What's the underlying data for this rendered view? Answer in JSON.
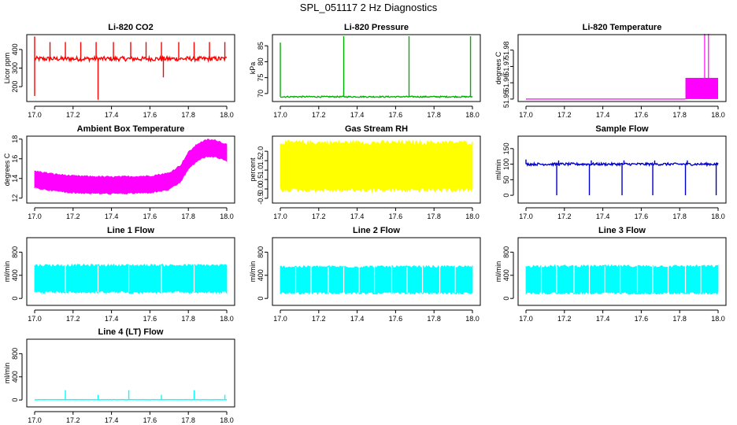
{
  "figure_title": "SPL_051117  2 Hz Diagnostics",
  "chart_data": [
    {
      "id": "li820-co2",
      "type": "line",
      "title": "Li-820 CO2",
      "ylabel": "Licor ppm",
      "color": "#ff0000",
      "xlim": [
        17.0,
        18.0
      ],
      "xticks": [
        "17.0",
        "17.2",
        "17.4",
        "17.6",
        "17.8",
        "18.0"
      ],
      "ylim": [
        120,
        480
      ],
      "yticks": [
        {
          "v": 200,
          "label": "200"
        },
        {
          "v": 300,
          "label": "300"
        },
        {
          "v": 400,
          "label": "400"
        }
      ],
      "baseline": 350,
      "noise": 12,
      "spikes": [
        [
          17.0,
          150
        ],
        [
          17.0,
          470
        ],
        [
          17.08,
          440
        ],
        [
          17.16,
          440
        ],
        [
          17.24,
          440
        ],
        [
          17.32,
          440
        ],
        [
          17.33,
          130
        ],
        [
          17.41,
          440
        ],
        [
          17.5,
          440
        ],
        [
          17.58,
          440
        ],
        [
          17.66,
          440
        ],
        [
          17.67,
          250
        ],
        [
          17.75,
          440
        ],
        [
          17.83,
          440
        ],
        [
          17.91,
          440
        ],
        [
          17.99,
          440
        ]
      ]
    },
    {
      "id": "li820-pressure",
      "type": "line",
      "title": "Li-820 Pressure",
      "ylabel": "kPa",
      "color": "#00b000",
      "xlim": [
        17.0,
        18.0
      ],
      "xticks": [
        "17.0",
        "17.2",
        "17.4",
        "17.6",
        "17.8",
        "18.0"
      ],
      "ylim": [
        67.5,
        88.5
      ],
      "yticks": [
        {
          "v": 70,
          "label": "70"
        },
        {
          "v": 75,
          "label": "75"
        },
        {
          "v": 80,
          "label": "80"
        },
        {
          "v": 85,
          "label": "85"
        }
      ],
      "baseline": 69.0,
      "noise": 0.2,
      "spikes": [
        [
          17.0,
          86
        ],
        [
          17.33,
          88
        ],
        [
          17.67,
          88
        ],
        [
          17.99,
          88
        ]
      ]
    },
    {
      "id": "li820-temperature",
      "type": "step",
      "title": "Li-820 Temperature",
      "ylabel": "degrees C",
      "color": "#ff00ff",
      "xlim": [
        17.0,
        18.0
      ],
      "xticks": [
        "17.0",
        "17.2",
        "17.4",
        "17.6",
        "17.8",
        "18.0"
      ],
      "ylim": [
        51.9485,
        51.9895
      ],
      "yticks": [
        {
          "v": 51.95,
          "label": "51.95"
        },
        {
          "v": 51.96,
          "label": "51.96"
        },
        {
          "v": 51.97,
          "label": "51.97"
        },
        {
          "v": 51.98,
          "label": "51.98"
        }
      ],
      "levels": [
        51.95,
        51.963
      ],
      "switch_x": 17.83,
      "block_start": 17.83,
      "block_end": 18.0,
      "spikes": [
        [
          17.93,
          51.99
        ],
        [
          17.95,
          51.99
        ]
      ]
    },
    {
      "id": "ambient-box-temperature",
      "type": "band",
      "title": "Ambient Box Temperature",
      "ylabel": "degrees C",
      "color": "#ff00ff",
      "xlim": [
        17.0,
        18.0
      ],
      "xticks": [
        "17.0",
        "17.2",
        "17.4",
        "17.6",
        "17.8",
        "18.0"
      ],
      "ylim": [
        11.5,
        18.3
      ],
      "yticks": [
        {
          "v": 12,
          "label": "12"
        },
        {
          "v": 14,
          "label": "14"
        },
        {
          "v": 16,
          "label": "16"
        },
        {
          "v": 18,
          "label": "18"
        }
      ],
      "center": [
        [
          17.0,
          13.9
        ],
        [
          17.1,
          13.6
        ],
        [
          17.2,
          13.4
        ],
        [
          17.4,
          13.3
        ],
        [
          17.6,
          13.4
        ],
        [
          17.7,
          13.7
        ],
        [
          17.76,
          14.5
        ],
        [
          17.8,
          15.8
        ],
        [
          17.85,
          16.7
        ],
        [
          17.9,
          17.1
        ],
        [
          17.95,
          17.0
        ],
        [
          18.0,
          16.6
        ]
      ],
      "halfwidth": 0.85
    },
    {
      "id": "gas-stream-rh",
      "type": "band",
      "title": "Gas Stream RH",
      "ylabel": "percent",
      "color": "#ffff00",
      "xlim": [
        17.0,
        18.0
      ],
      "xticks": [
        "17.0",
        "17.2",
        "17.4",
        "17.6",
        "17.8",
        "18.0"
      ],
      "ylim": [
        -0.75,
        2.8
      ],
      "yticks": [
        {
          "v": -0.5,
          "label": "-0.5"
        },
        {
          "v": 0.0,
          "label": "0.0"
        },
        {
          "v": 0.5,
          "label": "0.5"
        },
        {
          "v": 1.0,
          "label": "1.0"
        },
        {
          "v": 1.5,
          "label": "1.5"
        },
        {
          "v": 2.0,
          "label": "2.0"
        }
      ],
      "center": [
        [
          17.0,
          1.2
        ],
        [
          18.0,
          1.2
        ]
      ],
      "halfwidth": 1.25
    },
    {
      "id": "sample-flow",
      "type": "line",
      "title": "Sample Flow",
      "ylabel": "ml/min",
      "color": "#0000cc",
      "xlim": [
        17.0,
        18.0
      ],
      "xticks": [
        "17.0",
        "17.2",
        "17.4",
        "17.6",
        "17.8",
        "18.0"
      ],
      "ylim": [
        -25,
        190
      ],
      "yticks": [
        {
          "v": 0,
          "label": "0"
        },
        {
          "v": 50,
          "label": "50"
        },
        {
          "v": 100,
          "label": "100"
        },
        {
          "v": 150,
          "label": "150"
        }
      ],
      "baseline": 100,
      "noise": 4,
      "spikes": [
        [
          17.0,
          115
        ],
        [
          17.16,
          0
        ],
        [
          17.17,
          112
        ],
        [
          17.33,
          0
        ],
        [
          17.34,
          112
        ],
        [
          17.5,
          0
        ],
        [
          17.51,
          112
        ],
        [
          17.66,
          0
        ],
        [
          17.67,
          112
        ],
        [
          17.83,
          0
        ],
        [
          17.84,
          112
        ],
        [
          17.99,
          0
        ]
      ]
    },
    {
      "id": "line-1-flow",
      "type": "band",
      "title": "Line 1 Flow",
      "ylabel": "ml/min",
      "color": "#00ffff",
      "xlim": [
        17.0,
        18.0
      ],
      "xticks": [
        "17.0",
        "17.2",
        "17.4",
        "17.6",
        "17.8",
        "18.0"
      ],
      "ylim": [
        -120,
        1050
      ],
      "yticks": [
        {
          "v": 0,
          "label": "0"
        },
        {
          "v": 400,
          "label": "400"
        },
        {
          "v": 800,
          "label": "800"
        }
      ],
      "center": [
        [
          17.0,
          340
        ],
        [
          18.0,
          340
        ]
      ],
      "halfwidth": 230,
      "gaps": [
        17.16,
        17.33,
        17.49,
        17.66,
        17.83
      ]
    },
    {
      "id": "line-2-flow",
      "type": "band",
      "title": "Line 2 Flow",
      "ylabel": "ml/min",
      "color": "#00ffff",
      "xlim": [
        17.0,
        18.0
      ],
      "xticks": [
        "17.0",
        "17.2",
        "17.4",
        "17.6",
        "17.8",
        "18.0"
      ],
      "ylim": [
        -120,
        1050
      ],
      "yticks": [
        {
          "v": 0,
          "label": "0"
        },
        {
          "v": 400,
          "label": "400"
        },
        {
          "v": 800,
          "label": "800"
        }
      ],
      "center": [
        [
          17.0,
          320
        ],
        [
          18.0,
          320
        ]
      ],
      "halfwidth": 225,
      "gaps": [
        17.08,
        17.16,
        17.25,
        17.33,
        17.41,
        17.49,
        17.58,
        17.66,
        17.74,
        17.83,
        17.91
      ]
    },
    {
      "id": "line-3-flow",
      "type": "band",
      "title": "Line 3 Flow",
      "ylabel": "ml/min",
      "color": "#00ffff",
      "xlim": [
        17.0,
        18.0
      ],
      "xticks": [
        "17.0",
        "17.2",
        "17.4",
        "17.6",
        "17.8",
        "18.0"
      ],
      "ylim": [
        -120,
        1050
      ],
      "yticks": [
        {
          "v": 0,
          "label": "0"
        },
        {
          "v": 400,
          "label": "400"
        },
        {
          "v": 800,
          "label": "800"
        }
      ],
      "center": [
        [
          17.0,
          325
        ],
        [
          18.0,
          325
        ]
      ],
      "halfwidth": 230,
      "gaps": [
        17.08,
        17.16,
        17.25,
        17.33,
        17.41,
        17.49,
        17.58,
        17.66,
        17.74,
        17.83,
        17.91
      ]
    },
    {
      "id": "line-4-lt-flow",
      "type": "line",
      "title": "Line 4 (LT) Flow",
      "ylabel": "ml/min",
      "color": "#00ffff",
      "xlim": [
        17.0,
        18.0
      ],
      "xticks": [
        "17.0",
        "17.2",
        "17.4",
        "17.6",
        "17.8",
        "18.0"
      ],
      "ylim": [
        -120,
        1050
      ],
      "yticks": [
        {
          "v": 0,
          "label": "0"
        },
        {
          "v": 400,
          "label": "400"
        },
        {
          "v": 800,
          "label": "800"
        }
      ],
      "baseline": 5,
      "noise": 2,
      "spikes": [
        [
          17.16,
          170
        ],
        [
          17.33,
          90
        ],
        [
          17.49,
          170
        ],
        [
          17.66,
          90
        ],
        [
          17.83,
          170
        ],
        [
          17.99,
          90
        ]
      ]
    }
  ]
}
